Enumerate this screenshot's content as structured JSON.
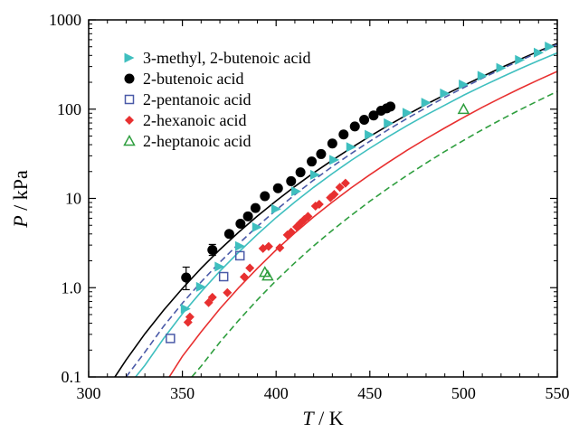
{
  "chart_data": {
    "type": "scatter",
    "title": "",
    "xlabel": {
      "italic": "T",
      "rest": " / K"
    },
    "ylabel": {
      "italic": "P",
      "rest": " / kPa"
    },
    "xlim": [
      300,
      550
    ],
    "ylim": [
      0.1,
      1000
    ],
    "yscale": "log",
    "grid": false,
    "legend_position": "top-left",
    "x_ticks": [
      300,
      350,
      400,
      450,
      500,
      550
    ],
    "x_tick_labels": [
      "300",
      "350",
      "400",
      "450",
      "500",
      "550"
    ],
    "y_ticks": [
      0.1,
      1,
      10,
      100,
      1000
    ],
    "y_tick_labels": [
      "0.1",
      "1.0",
      "10",
      "100",
      "1000"
    ],
    "series": [
      {
        "name": "3-methyl, 2-butenoic acid",
        "marker": "triangle-right",
        "color": "#3fbfbf",
        "points": [
          [
            351.8,
            0.58
          ],
          [
            360,
            1.02
          ],
          [
            369.9,
            1.72
          ],
          [
            380.8,
            2.92
          ],
          [
            389.9,
            4.76
          ],
          [
            400.1,
            7.6
          ],
          [
            410.8,
            12.0
          ],
          [
            420.9,
            18.4
          ],
          [
            431.1,
            27.0
          ],
          [
            440.1,
            37.6
          ],
          [
            449.9,
            51.6
          ],
          [
            460.1,
            69.4
          ],
          [
            470.1,
            91.1
          ],
          [
            480.1,
            118
          ],
          [
            490.1,
            150
          ],
          [
            500.1,
            189
          ],
          [
            510.1,
            236
          ],
          [
            520.1,
            290
          ],
          [
            530.1,
            356
          ],
          [
            540.1,
            430
          ],
          [
            546,
            503
          ]
        ]
      },
      {
        "name": "2-butenoic acid",
        "marker": "circle",
        "color": "#000000",
        "points": [
          [
            352,
            1.3
          ],
          [
            366,
            2.65
          ],
          [
            375,
            4.0
          ],
          [
            381,
            5.2
          ],
          [
            385,
            6.3
          ],
          [
            389,
            7.8
          ],
          [
            394,
            10.6
          ],
          [
            401,
            13.0
          ],
          [
            408,
            15.6
          ],
          [
            413,
            19.6
          ],
          [
            419,
            25.9
          ],
          [
            424,
            31.4
          ],
          [
            430,
            41.2
          ],
          [
            436,
            52.1
          ],
          [
            442,
            64.0
          ],
          [
            447,
            76.0
          ],
          [
            452,
            85.0
          ],
          [
            456,
            96.0
          ],
          [
            459,
            102
          ],
          [
            461,
            107
          ]
        ]
      },
      {
        "name": "2-pentanoic acid",
        "marker": "square-open",
        "color": "#4a5aa8",
        "points": [
          [
            343.6,
            0.27
          ],
          [
            372,
            1.33
          ],
          [
            380.7,
            2.28
          ]
        ]
      },
      {
        "name": "2-hexanoic acid",
        "marker": "diamond",
        "color": "#e83030",
        "points": [
          [
            353,
            0.41
          ],
          [
            354,
            0.47
          ],
          [
            364,
            0.68
          ],
          [
            366,
            0.78
          ],
          [
            374,
            0.88
          ],
          [
            383,
            1.32
          ],
          [
            386,
            1.66
          ],
          [
            393,
            2.75
          ],
          [
            396,
            2.9
          ],
          [
            402,
            2.8
          ],
          [
            406,
            3.9
          ],
          [
            408,
            4.2
          ],
          [
            411,
            4.8
          ],
          [
            413,
            5.3
          ],
          [
            415,
            5.8
          ],
          [
            417,
            6.3
          ],
          [
            421,
            8.2
          ],
          [
            423,
            8.6
          ],
          [
            429,
            10.2
          ],
          [
            431,
            11.1
          ],
          [
            434,
            13.3
          ],
          [
            437,
            14.8
          ]
        ]
      },
      {
        "name": "2-heptanoic acid",
        "marker": "triangle-up-open",
        "color": "#2e9e3e",
        "points": [
          [
            394,
            1.49
          ],
          [
            395.5,
            1.36
          ],
          [
            500,
            99.8
          ]
        ]
      }
    ],
    "error_bars": [
      {
        "x": 352,
        "y": 1.3,
        "low": 0.95,
        "high": 1.7
      },
      {
        "x": 366,
        "y": 2.65,
        "low": 2.3,
        "high": 3.05
      }
    ],
    "fit_curves": [
      {
        "series": "2-butenoic acid",
        "style": "solid",
        "color": "#000000",
        "points": [
          [
            314,
            0.1
          ],
          [
            320,
            0.155
          ],
          [
            330,
            0.305
          ],
          [
            340,
            0.56
          ],
          [
            350,
            0.98
          ],
          [
            360,
            1.65
          ],
          [
            370,
            2.67
          ],
          [
            380,
            4.18
          ],
          [
            390,
            6.35
          ],
          [
            400,
            9.4
          ],
          [
            410,
            13.6
          ],
          [
            420,
            19.3
          ],
          [
            430,
            26.8
          ],
          [
            440,
            36.7
          ],
          [
            450,
            49.6
          ],
          [
            460,
            66.0
          ],
          [
            470,
            86.8
          ],
          [
            480,
            113
          ],
          [
            490,
            145
          ],
          [
            500,
            184
          ],
          [
            510,
            232
          ],
          [
            520,
            291
          ],
          [
            530,
            361
          ],
          [
            540,
            445
          ],
          [
            550,
            545
          ]
        ]
      },
      {
        "series": "2-pentanoic acid",
        "style": "dashed",
        "color": "#4a5aa8",
        "points": [
          [
            320,
            0.1
          ],
          [
            330,
            0.19
          ],
          [
            340,
            0.37
          ],
          [
            350,
            0.67
          ],
          [
            360,
            1.16
          ],
          [
            370,
            1.93
          ],
          [
            380,
            3.1
          ],
          [
            390,
            4.86
          ],
          [
            400,
            7.4
          ],
          [
            410,
            11.0
          ],
          [
            420,
            16.0
          ],
          [
            430,
            22.8
          ],
          [
            440,
            31.8
          ],
          [
            450,
            43.7
          ],
          [
            460,
            59.2
          ],
          [
            470,
            79.0
          ],
          [
            480,
            104
          ],
          [
            490,
            136
          ],
          [
            500,
            174
          ],
          [
            510,
            222
          ],
          [
            520,
            280
          ],
          [
            530,
            350
          ],
          [
            540,
            433
          ],
          [
            550,
            532
          ]
        ]
      },
      {
        "series": "3-methyl, 2-butenoic acid",
        "style": "solid",
        "color": "#3fbfbf",
        "points": [
          [
            325,
            0.1
          ],
          [
            330,
            0.135
          ],
          [
            340,
            0.27
          ],
          [
            350,
            0.51
          ],
          [
            360,
            0.9
          ],
          [
            370,
            1.53
          ],
          [
            380,
            2.5
          ],
          [
            390,
            3.95
          ],
          [
            400,
            6.1
          ],
          [
            410,
            9.1
          ],
          [
            420,
            13.3
          ],
          [
            430,
            19.0
          ],
          [
            440,
            26.6
          ],
          [
            450,
            36.5
          ],
          [
            460,
            49.3
          ],
          [
            470,
            65.6
          ],
          [
            480,
            86.0
          ],
          [
            490,
            111
          ],
          [
            500,
            143
          ],
          [
            510,
            181
          ],
          [
            520,
            227
          ],
          [
            530,
            283
          ],
          [
            540,
            349
          ],
          [
            550,
            427
          ]
        ]
      },
      {
        "series": "2-hexanoic acid",
        "style": "solid",
        "color": "#e83030",
        "points": [
          [
            343,
            0.1
          ],
          [
            350,
            0.17
          ],
          [
            360,
            0.32
          ],
          [
            370,
            0.58
          ],
          [
            380,
            1.0
          ],
          [
            390,
            1.65
          ],
          [
            400,
            2.65
          ],
          [
            410,
            4.1
          ],
          [
            420,
            6.2
          ],
          [
            430,
            9.1
          ],
          [
            440,
            13.1
          ],
          [
            450,
            18.4
          ],
          [
            460,
            25.5
          ],
          [
            470,
            34.7
          ],
          [
            480,
            46.6
          ],
          [
            490,
            61.7
          ],
          [
            500,
            80.8
          ],
          [
            510,
            105
          ],
          [
            520,
            134
          ],
          [
            530,
            170
          ],
          [
            540,
            213
          ],
          [
            550,
            265
          ]
        ]
      },
      {
        "series": "2-heptanoic acid",
        "style": "dashed",
        "color": "#2e9e3e",
        "points": [
          [
            355,
            0.1
          ],
          [
            360,
            0.132
          ],
          [
            370,
            0.245
          ],
          [
            380,
            0.43
          ],
          [
            390,
            0.73
          ],
          [
            400,
            1.2
          ],
          [
            410,
            1.9
          ],
          [
            420,
            2.93
          ],
          [
            430,
            4.4
          ],
          [
            440,
            6.45
          ],
          [
            450,
            9.3
          ],
          [
            460,
            13.1
          ],
          [
            470,
            18.2
          ],
          [
            480,
            24.9
          ],
          [
            490,
            33.6
          ],
          [
            500,
            44.7
          ],
          [
            510,
            58.8
          ],
          [
            520,
            76.4
          ],
          [
            530,
            98.3
          ],
          [
            540,
            125
          ],
          [
            550,
            158
          ]
        ]
      }
    ]
  }
}
